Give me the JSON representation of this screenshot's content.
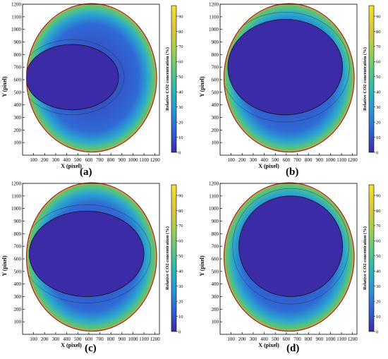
{
  "panel_defaults": {
    "xlabel": "X (pixel)",
    "ylabel": "Y (pixel)",
    "colorbar_label": "Relative CO2 concentration (%)",
    "x_ticks": [
      "100",
      "200",
      "300",
      "400",
      "500",
      "600",
      "700",
      "800",
      "900",
      "1000",
      "1100",
      "1200"
    ],
    "y_ticks": [
      "100",
      "200",
      "300",
      "400",
      "500",
      "600",
      "700",
      "800",
      "900",
      "1000",
      "1100",
      "1200"
    ],
    "cbar_ticks": [
      "0",
      "10",
      "20",
      "30",
      "40",
      "50",
      "60",
      "70",
      "80",
      "90"
    ],
    "colormap": [
      "#3b2ba6",
      "#2f63d6",
      "#2a94d8",
      "#2bb8b0",
      "#63c77b",
      "#a9cf4c",
      "#e1c73b",
      "#f4e32a"
    ]
  },
  "panels": [
    {
      "label": "(a)"
    },
    {
      "label": "(b)"
    },
    {
      "label": "(c)"
    },
    {
      "label": "(d)"
    }
  ],
  "chart_data": [
    {
      "type": "heatmap",
      "panel_label": "(a)",
      "xlabel": "X (pixel)",
      "ylabel": "Y (pixel)",
      "xlim": [
        0,
        1240
      ],
      "ylim": [
        0,
        1200
      ],
      "x_ticks": [
        100,
        200,
        300,
        400,
        500,
        600,
        700,
        800,
        900,
        1000,
        1100,
        1200
      ],
      "y_ticks": [
        100,
        200,
        300,
        400,
        500,
        600,
        700,
        800,
        900,
        1000,
        1100,
        1200
      ],
      "colorbar": {
        "label": "Relative CO2 concentration (%)",
        "range": [
          0,
          97
        ],
        "ticks": [
          0,
          10,
          20,
          30,
          40,
          50,
          60,
          70,
          80,
          90
        ]
      },
      "circle": {
        "center": [
          625,
          615
        ],
        "radius": 590
      },
      "low_concentration_core": {
        "value": 0,
        "center": [
          450,
          620
        ],
        "rx": 420,
        "ry": 260
      }
    },
    {
      "type": "heatmap",
      "panel_label": "(b)",
      "xlabel": "X (pixel)",
      "ylabel": "Y (pixel)",
      "xlim": [
        0,
        1240
      ],
      "ylim": [
        0,
        1200
      ],
      "x_ticks": [
        100,
        200,
        300,
        400,
        500,
        600,
        700,
        800,
        900,
        1000,
        1100,
        1200
      ],
      "y_ticks": [
        100,
        200,
        300,
        400,
        500,
        600,
        700,
        800,
        900,
        1000,
        1100,
        1200
      ],
      "colorbar": {
        "label": "Relative CO2 concentration (%)",
        "range": [
          0,
          97
        ],
        "ticks": [
          0,
          10,
          20,
          30,
          40,
          50,
          60,
          70,
          80,
          90
        ]
      },
      "circle": {
        "center": [
          625,
          615
        ],
        "radius": 590
      },
      "low_concentration_core": {
        "value": 0,
        "center": [
          590,
          700
        ],
        "rx": 520,
        "ry": 380
      }
    },
    {
      "type": "heatmap",
      "panel_label": "(c)",
      "xlabel": "X (pixel)",
      "ylabel": "Y (pixel)",
      "xlim": [
        0,
        1240
      ],
      "ylim": [
        0,
        1200
      ],
      "x_ticks": [
        100,
        200,
        300,
        400,
        500,
        600,
        700,
        800,
        900,
        1000,
        1100,
        1200
      ],
      "y_ticks": [
        100,
        200,
        300,
        400,
        500,
        600,
        700,
        800,
        900,
        1000,
        1100,
        1200
      ],
      "colorbar": {
        "label": "Relative CO2 concentration (%)",
        "range": [
          0,
          97
        ],
        "ticks": [
          0,
          10,
          20,
          30,
          40,
          50,
          60,
          70,
          80,
          90
        ]
      },
      "circle": {
        "center": [
          625,
          615
        ],
        "radius": 590
      },
      "low_concentration_core": {
        "value": 0,
        "center": [
          580,
          640
        ],
        "rx": 520,
        "ry": 340
      }
    },
    {
      "type": "heatmap",
      "panel_label": "(d)",
      "xlabel": "X (pixel)",
      "ylabel": "Y (pixel)",
      "xlim": [
        0,
        1240
      ],
      "ylim": [
        0,
        1200
      ],
      "x_ticks": [
        100,
        200,
        300,
        400,
        500,
        600,
        700,
        800,
        900,
        1000,
        1100,
        1200
      ],
      "y_ticks": [
        100,
        200,
        300,
        400,
        500,
        600,
        700,
        800,
        900,
        1000,
        1100,
        1200
      ],
      "colorbar": {
        "label": "Relative CO2 concentration (%)",
        "range": [
          0,
          97
        ],
        "ticks": [
          0,
          10,
          20,
          30,
          40,
          50,
          60,
          70,
          80,
          90
        ]
      },
      "circle": {
        "center": [
          625,
          615
        ],
        "radius": 590
      },
      "low_concentration_core": {
        "value": 0,
        "center": [
          640,
          700
        ],
        "rx": 470,
        "ry": 400
      }
    }
  ]
}
